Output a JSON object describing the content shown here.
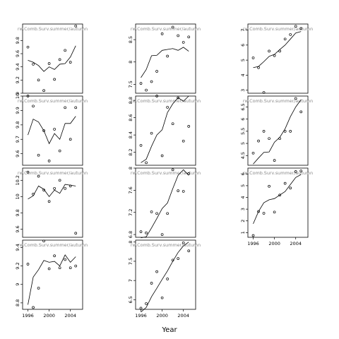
{
  "chart_data": {
    "type": "scatter",
    "title": "",
    "xlabel": "Year",
    "ylabel": "",
    "panel_label": "rw.Comb.Surv.summer/autumn",
    "panels": [
      {
        "col": 0,
        "row": 0,
        "ylim": [
          9.0,
          10.05
        ],
        "yticks": [
          9.0,
          9.2,
          9.4,
          9.6,
          9.8
        ],
        "points": [
          [
            1996,
            9.7
          ],
          [
            1997,
            9.44
          ],
          [
            1998,
            9.2
          ],
          [
            1999,
            9.04
          ],
          [
            2000,
            9.45
          ],
          [
            2001,
            9.21
          ],
          [
            2002,
            9.51
          ],
          [
            2003,
            9.65
          ],
          [
            2004,
            9.47
          ],
          [
            2005,
            10.02
          ]
        ],
        "line": [
          [
            1996,
            9.5
          ],
          [
            1997,
            9.47
          ],
          [
            1998,
            9.42
          ],
          [
            1999,
            9.33
          ],
          [
            2000,
            9.4
          ],
          [
            2001,
            9.36
          ],
          [
            2002,
            9.44
          ],
          [
            2003,
            9.45
          ],
          [
            2004,
            9.55
          ],
          [
            2005,
            9.72
          ]
        ]
      },
      {
        "col": 0,
        "row": 1,
        "ylim": [
          9.52,
          10.0
        ],
        "yticks": [
          9.6,
          9.7,
          9.8,
          9.9,
          10.0
        ],
        "points": [
          [
            1996,
            10.0
          ],
          [
            1997,
            9.93
          ],
          [
            1998,
            9.59
          ],
          [
            1999,
            9.76
          ],
          [
            2000,
            9.55
          ],
          [
            2001,
            9.77
          ],
          [
            2002,
            9.62
          ],
          [
            2003,
            9.92
          ],
          [
            2004,
            9.7
          ],
          [
            2005,
            9.92
          ]
        ],
        "line": [
          [
            1996,
            9.73
          ],
          [
            1997,
            9.84
          ],
          [
            1998,
            9.82
          ],
          [
            1999,
            9.76
          ],
          [
            2000,
            9.67
          ],
          [
            2001,
            9.74
          ],
          [
            2002,
            9.7
          ],
          [
            2003,
            9.81
          ],
          [
            2004,
            9.81
          ],
          [
            2005,
            9.86
          ]
        ]
      },
      {
        "col": 0,
        "row": 2,
        "ylim": [
          9.5,
          10.35
        ],
        "yticks": [
          9.6,
          9.8,
          10.0,
          10.2
        ],
        "points": [
          [
            1996,
            10.3
          ],
          [
            1997,
            10.03
          ],
          [
            1998,
            10.25
          ],
          [
            1999,
            10.08
          ],
          [
            2000,
            9.94
          ],
          [
            2001,
            10.1
          ],
          [
            2002,
            10.2
          ],
          [
            2003,
            10.1
          ],
          [
            2004,
            10.13
          ],
          [
            2005,
            9.55
          ]
        ],
        "line": [
          [
            1996,
            9.97
          ],
          [
            1997,
            10.01
          ],
          [
            1998,
            10.13
          ],
          [
            1999,
            10.09
          ],
          [
            2000,
            10.0
          ],
          [
            2001,
            10.08
          ],
          [
            2002,
            10.04
          ],
          [
            2003,
            10.15
          ],
          [
            2004,
            10.14
          ],
          [
            2005,
            10.13
          ]
        ]
      },
      {
        "col": 0,
        "row": 3,
        "ylim": [
          8.73,
          9.48
        ],
        "yticks": [
          8.8,
          9.0,
          9.2,
          9.4
        ],
        "points": [
          [
            1996,
            9.22
          ],
          [
            1997,
            8.75
          ],
          [
            1998,
            8.96
          ],
          [
            1999,
            9.47
          ],
          [
            2000,
            9.17
          ],
          [
            2001,
            9.31
          ],
          [
            2002,
            9.18
          ],
          [
            2003,
            9.27
          ],
          [
            2004,
            9.18
          ],
          [
            2005,
            9.2
          ]
        ],
        "line": [
          [
            1996,
            8.78
          ],
          [
            1997,
            9.08
          ],
          [
            1998,
            9.16
          ],
          [
            1999,
            9.26
          ],
          [
            2000,
            9.24
          ],
          [
            2001,
            9.25
          ],
          [
            2002,
            9.2
          ],
          [
            2003,
            9.32
          ],
          [
            2004,
            9.24
          ],
          [
            2005,
            9.3
          ]
        ]
      },
      {
        "col": 1,
        "row": 0,
        "ylim": [
          7.3,
          8.85
        ],
        "yticks": [
          7.5,
          8.0,
          8.5
        ],
        "points": [
          [
            1996,
            7.52
          ],
          [
            1997,
            7.37
          ],
          [
            1998,
            7.56
          ],
          [
            1999,
            7.79
          ],
          [
            2000,
            8.63
          ],
          [
            2001,
            8.13
          ],
          [
            2002,
            8.78
          ],
          [
            2003,
            8.59
          ],
          [
            2004,
            8.44
          ],
          [
            2005,
            8.56
          ]
        ],
        "line": [
          [
            1996,
            7.65
          ],
          [
            1997,
            7.83
          ],
          [
            1998,
            8.14
          ],
          [
            1999,
            8.15
          ],
          [
            2000,
            8.26
          ],
          [
            2001,
            8.28
          ],
          [
            2002,
            8.3
          ],
          [
            2003,
            8.26
          ],
          [
            2004,
            8.33
          ],
          [
            2005,
            8.24
          ]
        ]
      },
      {
        "col": 1,
        "row": 1,
        "ylim": [
          8.05,
          8.85
        ],
        "yticks": [
          8.2,
          8.4,
          8.6,
          8.8
        ],
        "points": [
          [
            1996,
            8.28
          ],
          [
            1997,
            8.08
          ],
          [
            1998,
            8.42
          ],
          [
            1999,
            8.85
          ],
          [
            2000,
            8.16
          ],
          [
            2001,
            8.72
          ],
          [
            2002,
            8.53
          ],
          [
            2003,
            8.83
          ],
          [
            2004,
            8.33
          ],
          [
            2005,
            8.5
          ]
        ],
        "line": [
          [
            1996,
            8.08
          ],
          [
            1997,
            8.12
          ],
          [
            1998,
            8.27
          ],
          [
            1999,
            8.4
          ],
          [
            2000,
            8.46
          ],
          [
            2001,
            8.66
          ],
          [
            2002,
            8.76
          ],
          [
            2003,
            8.83
          ],
          [
            2004,
            8.79
          ],
          [
            2005,
            8.85
          ]
        ]
      },
      {
        "col": 1,
        "row": 2,
        "ylim": [
          6.75,
          8.0
        ],
        "yticks": [
          6.8,
          7.2,
          7.6,
          8.0
        ],
        "points": [
          [
            1996,
            6.85
          ],
          [
            1997,
            6.83
          ],
          [
            1998,
            7.21
          ],
          [
            1999,
            7.18
          ],
          [
            2000,
            6.8
          ],
          [
            2001,
            7.18
          ],
          [
            2002,
            7.97
          ],
          [
            2003,
            7.59
          ],
          [
            2004,
            7.58
          ],
          [
            2005,
            7.9
          ]
        ],
        "line": [
          [
            1996,
            6.74
          ],
          [
            1997,
            6.76
          ],
          [
            1998,
            6.92
          ],
          [
            1999,
            7.09
          ],
          [
            2000,
            7.27
          ],
          [
            2001,
            7.37
          ],
          [
            2002,
            7.63
          ],
          [
            2003,
            7.87
          ],
          [
            2004,
            7.97
          ],
          [
            2005,
            7.87
          ]
        ]
      },
      {
        "col": 1,
        "row": 3,
        "ylim": [
          6.25,
          8.05
        ],
        "yticks": [
          6.5,
          7.0,
          7.5,
          8.0
        ],
        "points": [
          [
            1996,
            6.28
          ],
          [
            1997,
            6.4
          ],
          [
            1998,
            6.93
          ],
          [
            1999,
            7.23
          ],
          [
            2000,
            6.55
          ],
          [
            2001,
            7.04
          ],
          [
            2002,
            7.53
          ],
          [
            2003,
            7.57
          ],
          [
            2004,
            7.98
          ],
          [
            2005,
            7.77
          ]
        ],
        "line": [
          [
            1996,
            6.18
          ],
          [
            1997,
            6.3
          ],
          [
            1998,
            6.58
          ],
          [
            1999,
            6.8
          ],
          [
            2000,
            7.03
          ],
          [
            2001,
            7.25
          ],
          [
            2002,
            7.5
          ],
          [
            2003,
            7.73
          ],
          [
            2004,
            7.9
          ],
          [
            2005,
            8.0
          ]
        ]
      },
      {
        "col": 2,
        "row": 0,
        "ylim": [
          2.8,
          7.4
        ],
        "yticks": [
          3,
          4,
          5,
          6,
          7
        ],
        "points": [
          [
            1996,
            5.15
          ],
          [
            1997,
            4.5
          ],
          [
            1998,
            2.85
          ],
          [
            1999,
            5.6
          ],
          [
            2000,
            5.3
          ],
          [
            2001,
            5.6
          ],
          [
            2002,
            6.4
          ],
          [
            2003,
            6.7
          ],
          [
            2004,
            7.25
          ],
          [
            2005,
            7.1
          ]
        ],
        "line": [
          [
            1996,
            4.5
          ],
          [
            1997,
            4.58
          ],
          [
            1998,
            4.9
          ],
          [
            1999,
            5.25
          ],
          [
            2000,
            5.38
          ],
          [
            2001,
            5.7
          ],
          [
            2002,
            6.0
          ],
          [
            2003,
            6.4
          ],
          [
            2004,
            6.8
          ],
          [
            2005,
            6.9
          ]
        ]
      },
      {
        "col": 2,
        "row": 1,
        "ylim": [
          4.1,
          6.95
        ],
        "yticks": [
          4.5,
          5.0,
          5.5,
          6.0,
          6.5
        ],
        "points": [
          [
            1996,
            4.6
          ],
          [
            1997,
            5.1
          ],
          [
            1998,
            5.5
          ],
          [
            1999,
            5.2
          ],
          [
            2000,
            4.3
          ],
          [
            2001,
            5.2
          ],
          [
            2002,
            5.5
          ],
          [
            2003,
            5.5
          ],
          [
            2004,
            6.85
          ],
          [
            2005,
            6.3
          ]
        ],
        "line": [
          [
            1996,
            4.15
          ],
          [
            1997,
            4.4
          ],
          [
            1998,
            4.63
          ],
          [
            1999,
            4.65
          ],
          [
            2000,
            5.05
          ],
          [
            2001,
            5.25
          ],
          [
            2002,
            5.6
          ],
          [
            2003,
            6.1
          ],
          [
            2004,
            6.5
          ],
          [
            2005,
            6.8
          ]
        ]
      },
      {
        "col": 2,
        "row": 2,
        "ylim": [
          0.6,
          6.5
        ],
        "yticks": [
          1,
          2,
          3,
          4,
          5,
          6
        ],
        "points": [
          [
            1996,
            0.75
          ],
          [
            1997,
            2.8
          ],
          [
            1998,
            2.65
          ],
          [
            1999,
            4.95
          ],
          [
            2000,
            2.75
          ],
          [
            2001,
            4.2
          ],
          [
            2002,
            5.2
          ],
          [
            2003,
            4.8
          ],
          [
            2004,
            6.2
          ],
          [
            2005,
            6.25
          ]
        ],
        "line": [
          [
            1996,
            1.75
          ],
          [
            1997,
            2.8
          ],
          [
            1998,
            3.55
          ],
          [
            1999,
            3.8
          ],
          [
            2000,
            3.9
          ],
          [
            2001,
            4.2
          ],
          [
            2002,
            4.5
          ],
          [
            2003,
            5.1
          ],
          [
            2004,
            5.7
          ],
          [
            2005,
            5.95
          ]
        ]
      }
    ],
    "xlim": [
      1995,
      2006.3
    ],
    "xticks": [
      1996,
      2000,
      2004
    ],
    "grid": false,
    "legend": "none"
  }
}
